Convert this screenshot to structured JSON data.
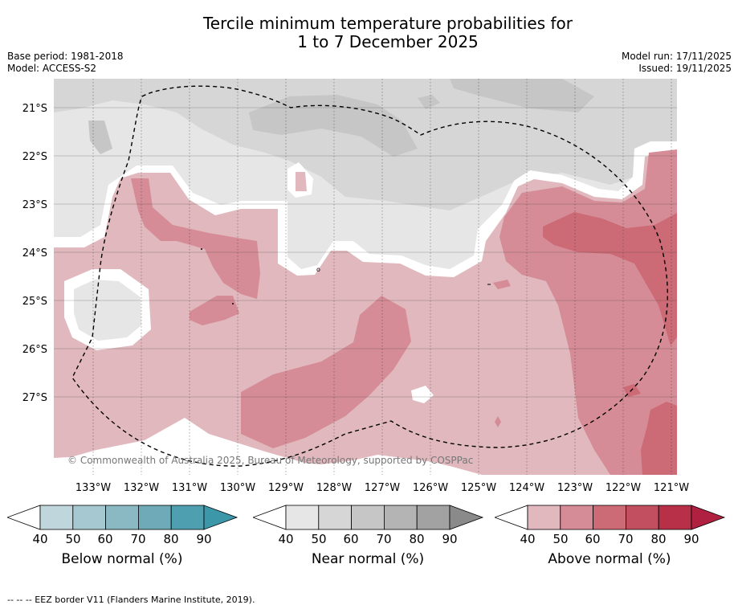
{
  "title": {
    "line1": "Tercile minimum temperature probabilities for",
    "line2": "1 to 7 December 2025"
  },
  "meta": {
    "base_period": "Base period: 1981-2018",
    "model": "Model: ACCESS-S2",
    "model_run": "Model run: 17/11/2025",
    "issued": "Issued: 19/11/2025"
  },
  "map": {
    "latitude_labels": [
      "21°S",
      "22°S",
      "23°S",
      "24°S",
      "25°S",
      "26°S",
      "27°S"
    ],
    "longitude_labels": [
      "133°W",
      "132°W",
      "131°W",
      "130°W",
      "129°W",
      "128°W",
      "127°W",
      "126°W",
      "125°W",
      "124°W",
      "123°W",
      "122°W",
      "121°W"
    ],
    "copyright": "© Commonwealth of Australia 2025, Bureau of Meteorology, supported by COSPPac",
    "eez_border_style": "dashed",
    "colors": {
      "near_40": "#e6e6e6",
      "near_50": "#d6d6d6",
      "near_60": "#c6c6c6",
      "above_40": "#e0b8bd",
      "above_50": "#d58c96",
      "above_60": "#cc6a76"
    }
  },
  "colorbars": [
    {
      "name": "below",
      "title": "Below normal (%)",
      "ticks": [
        "40",
        "50",
        "60",
        "70",
        "80",
        "90"
      ],
      "colors": [
        "#bfd6dd",
        "#a6c8d0",
        "#8ab9c4",
        "#6eaab8",
        "#4e9fb0",
        "#3c97a8"
      ]
    },
    {
      "name": "near",
      "title": "Near normal (%)",
      "ticks": [
        "40",
        "50",
        "60",
        "70",
        "80",
        "90"
      ],
      "colors": [
        "#e6e6e6",
        "#d6d6d6",
        "#c6c6c6",
        "#b4b4b4",
        "#a2a2a2",
        "#8a8a8a"
      ]
    },
    {
      "name": "above",
      "title": "Above normal (%)",
      "ticks": [
        "40",
        "50",
        "60",
        "70",
        "80",
        "90"
      ],
      "colors": [
        "#e0b8bd",
        "#d58c96",
        "#cc6a76",
        "#c24f5f",
        "#b82f48",
        "#b02040"
      ]
    }
  ],
  "footnote": "--  --  -- EEZ border V11 (Flanders Marine Institute, 2019)."
}
